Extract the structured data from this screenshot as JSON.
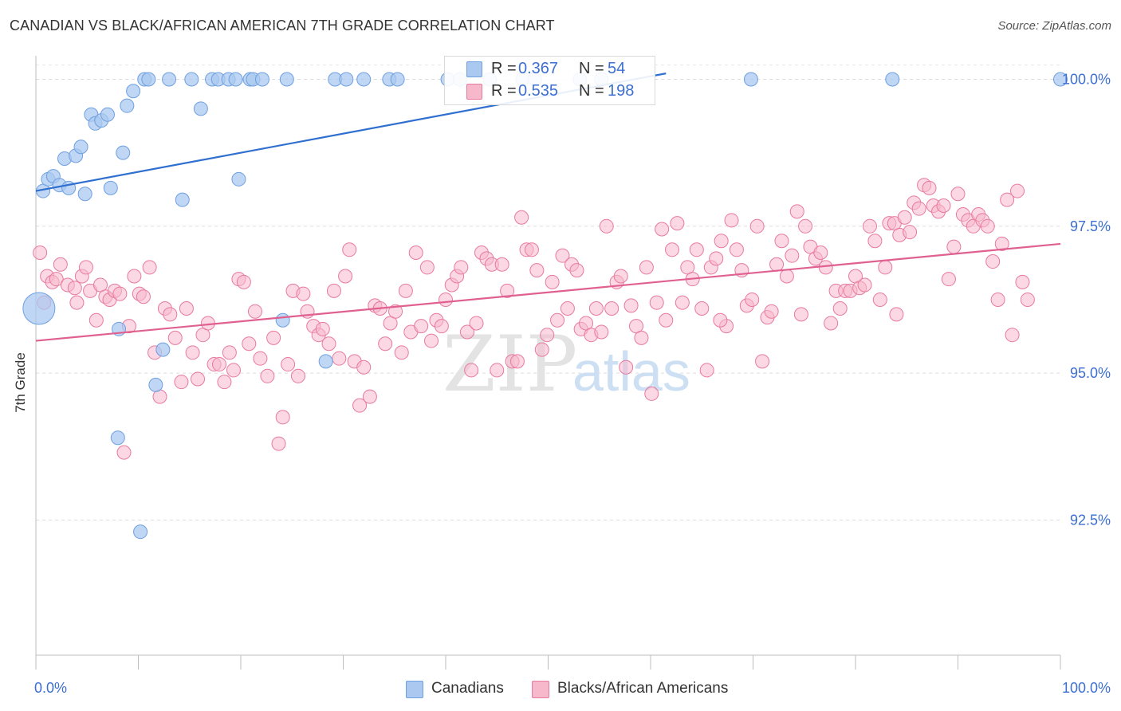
{
  "header": {
    "title": "CANADIAN VS BLACK/AFRICAN AMERICAN 7TH GRADE CORRELATION CHART",
    "source": "Source: ZipAtlas.com"
  },
  "watermark": {
    "zip": "ZIP",
    "atlas": "atlas"
  },
  "legend_top": {
    "rows": [
      {
        "r_label": "R =",
        "r_value": "0.367",
        "n_label": "N =",
        "n_value": "54",
        "color": "#aac8f0"
      },
      {
        "r_label": "R =",
        "r_value": "0.535",
        "n_label": "N =",
        "n_value": "198",
        "color": "#f7b8cc"
      }
    ]
  },
  "legend_bottom": {
    "items": [
      {
        "label": "Canadians",
        "color": "#aac8f0"
      },
      {
        "label": "Blacks/African Americans",
        "color": "#f7b8cc"
      }
    ]
  },
  "chart_data": {
    "type": "scatter",
    "title": "CANADIAN VS BLACK/AFRICAN AMERICAN 7TH GRADE CORRELATION CHART",
    "xlabel": "",
    "ylabel": "7th Grade",
    "xlim": [
      0,
      100
    ],
    "ylim": [
      90.2,
      100.4
    ],
    "x_tick_labels": [
      "0.0%",
      "100.0%"
    ],
    "y_ticks": [
      100.0,
      97.5,
      95.0,
      92.5
    ],
    "y_tick_labels": [
      "100.0%",
      "97.5%",
      "95.0%",
      "92.5%"
    ],
    "grid": true,
    "legend_position": "top-center",
    "series": [
      {
        "name": "Canadians",
        "color": "#6fa0e0",
        "fill": "#aac8f0",
        "r": 0.367,
        "n": 54,
        "trend": {
          "x": [
            0,
            61.5
          ],
          "y": [
            98.1,
            100.1
          ]
        },
        "points": [
          [
            0.3,
            96.1
          ],
          [
            0.7,
            98.1
          ],
          [
            1.2,
            98.3
          ],
          [
            1.7,
            98.35
          ],
          [
            2.3,
            98.2
          ],
          [
            2.8,
            98.65
          ],
          [
            3.2,
            98.15
          ],
          [
            3.9,
            98.7
          ],
          [
            4.4,
            98.85
          ],
          [
            4.8,
            98.05
          ],
          [
            5.4,
            99.4
          ],
          [
            5.8,
            99.25
          ],
          [
            6.4,
            99.3
          ],
          [
            7.0,
            99.4
          ],
          [
            7.3,
            98.15
          ],
          [
            8.1,
            95.75
          ],
          [
            8.5,
            98.75
          ],
          [
            8.9,
            99.55
          ],
          [
            9.5,
            99.8
          ],
          [
            10.2,
            92.3
          ],
          [
            10.6,
            100.0
          ],
          [
            11.0,
            100.0
          ],
          [
            11.7,
            94.8
          ],
          [
            12.4,
            95.4
          ],
          [
            13.0,
            100.0
          ],
          [
            14.3,
            97.95
          ],
          [
            15.2,
            100.0
          ],
          [
            16.1,
            99.5
          ],
          [
            17.2,
            100.0
          ],
          [
            17.8,
            100.0
          ],
          [
            18.8,
            100.0
          ],
          [
            19.5,
            100.0
          ],
          [
            19.8,
            98.3
          ],
          [
            20.9,
            100.0
          ],
          [
            21.2,
            100.0
          ],
          [
            22.1,
            100.0
          ],
          [
            24.1,
            95.9
          ],
          [
            24.5,
            100.0
          ],
          [
            28.3,
            95.2
          ],
          [
            29.2,
            100.0
          ],
          [
            30.3,
            100.0
          ],
          [
            32.0,
            100.0
          ],
          [
            34.5,
            100.0
          ],
          [
            35.3,
            100.0
          ],
          [
            40.2,
            100.0
          ],
          [
            41.4,
            100.0
          ],
          [
            44.3,
            100.0
          ],
          [
            47.5,
            100.0
          ],
          [
            48.7,
            100.0
          ],
          [
            53.1,
            100.0
          ],
          [
            55.2,
            100.0
          ],
          [
            69.8,
            100.0
          ],
          [
            83.6,
            100.0
          ],
          [
            100.0,
            100.0
          ],
          [
            8.0,
            93.9
          ]
        ]
      },
      {
        "name": "Blacks/African Americans",
        "color": "#e87aa0",
        "fill": "#f7b8cc",
        "r": 0.535,
        "n": 198,
        "trend": {
          "x": [
            0,
            100
          ],
          "y": [
            95.55,
            97.2
          ]
        },
        "points": [
          [
            0.4,
            97.05
          ],
          [
            0.8,
            96.2
          ],
          [
            1.1,
            96.65
          ],
          [
            1.6,
            96.55
          ],
          [
            2.0,
            96.6
          ],
          [
            2.4,
            96.85
          ],
          [
            3.1,
            96.5
          ],
          [
            3.8,
            96.45
          ],
          [
            4.0,
            96.2
          ],
          [
            4.5,
            96.65
          ],
          [
            4.9,
            96.8
          ],
          [
            5.3,
            96.4
          ],
          [
            5.9,
            95.9
          ],
          [
            6.3,
            96.5
          ],
          [
            6.8,
            96.3
          ],
          [
            7.2,
            96.25
          ],
          [
            7.7,
            96.4
          ],
          [
            8.2,
            96.35
          ],
          [
            8.6,
            93.65
          ],
          [
            9.1,
            95.8
          ],
          [
            9.6,
            96.65
          ],
          [
            10.1,
            96.35
          ],
          [
            10.5,
            96.3
          ],
          [
            11.1,
            96.8
          ],
          [
            11.6,
            95.35
          ],
          [
            12.1,
            94.6
          ],
          [
            12.6,
            96.1
          ],
          [
            13.1,
            96.0
          ],
          [
            13.6,
            95.6
          ],
          [
            14.2,
            94.85
          ],
          [
            14.7,
            96.1
          ],
          [
            15.3,
            95.35
          ],
          [
            15.8,
            94.9
          ],
          [
            16.3,
            95.65
          ],
          [
            16.8,
            95.85
          ],
          [
            17.4,
            95.15
          ],
          [
            17.9,
            95.15
          ],
          [
            18.4,
            94.85
          ],
          [
            18.9,
            95.35
          ],
          [
            19.3,
            95.05
          ],
          [
            19.8,
            96.6
          ],
          [
            20.3,
            96.55
          ],
          [
            20.8,
            95.5
          ],
          [
            21.4,
            96.05
          ],
          [
            21.9,
            95.25
          ],
          [
            22.6,
            94.95
          ],
          [
            23.2,
            95.6
          ],
          [
            23.7,
            93.8
          ],
          [
            24.1,
            94.25
          ],
          [
            24.6,
            95.15
          ],
          [
            25.1,
            96.4
          ],
          [
            25.6,
            94.95
          ],
          [
            26.1,
            96.35
          ],
          [
            26.5,
            96.05
          ],
          [
            27.1,
            95.8
          ],
          [
            27.6,
            95.65
          ],
          [
            28.0,
            95.75
          ],
          [
            28.6,
            95.5
          ],
          [
            29.1,
            96.4
          ],
          [
            29.6,
            95.25
          ],
          [
            30.2,
            96.65
          ],
          [
            30.6,
            97.1
          ],
          [
            31.1,
            95.2
          ],
          [
            31.6,
            94.45
          ],
          [
            32.0,
            95.1
          ],
          [
            32.6,
            94.6
          ],
          [
            33.1,
            96.15
          ],
          [
            33.6,
            96.1
          ],
          [
            34.1,
            95.5
          ],
          [
            34.6,
            95.85
          ],
          [
            35.1,
            96.05
          ],
          [
            35.7,
            95.35
          ],
          [
            36.1,
            96.4
          ],
          [
            36.6,
            95.7
          ],
          [
            37.1,
            97.05
          ],
          [
            37.6,
            95.8
          ],
          [
            38.2,
            96.8
          ],
          [
            38.6,
            95.55
          ],
          [
            39.1,
            95.9
          ],
          [
            39.6,
            95.8
          ],
          [
            40.0,
            96.25
          ],
          [
            40.6,
            96.5
          ],
          [
            41.1,
            96.65
          ],
          [
            41.5,
            96.8
          ],
          [
            42.1,
            95.7
          ],
          [
            42.5,
            95.05
          ],
          [
            43.0,
            95.85
          ],
          [
            43.5,
            97.05
          ],
          [
            44.0,
            96.95
          ],
          [
            44.5,
            96.85
          ],
          [
            45.0,
            95.05
          ],
          [
            45.5,
            96.85
          ],
          [
            46.0,
            96.4
          ],
          [
            46.5,
            95.2
          ],
          [
            47.0,
            95.2
          ],
          [
            47.4,
            97.65
          ],
          [
            47.9,
            97.1
          ],
          [
            48.4,
            97.1
          ],
          [
            48.9,
            96.75
          ],
          [
            49.4,
            95.4
          ],
          [
            49.9,
            95.65
          ],
          [
            50.4,
            96.55
          ],
          [
            50.9,
            95.9
          ],
          [
            51.4,
            97.0
          ],
          [
            51.9,
            96.1
          ],
          [
            52.3,
            96.85
          ],
          [
            52.8,
            96.75
          ],
          [
            53.2,
            95.75
          ],
          [
            53.7,
            95.85
          ],
          [
            54.2,
            95.65
          ],
          [
            54.7,
            96.1
          ],
          [
            55.2,
            95.7
          ],
          [
            55.7,
            97.5
          ],
          [
            56.2,
            96.1
          ],
          [
            56.7,
            96.55
          ],
          [
            57.1,
            96.65
          ],
          [
            57.6,
            95.1
          ],
          [
            58.1,
            96.15
          ],
          [
            58.6,
            95.8
          ],
          [
            59.1,
            95.6
          ],
          [
            59.6,
            96.8
          ],
          [
            60.1,
            94.65
          ],
          [
            60.6,
            96.2
          ],
          [
            61.1,
            97.45
          ],
          [
            61.5,
            95.9
          ],
          [
            62.1,
            97.1
          ],
          [
            62.6,
            97.55
          ],
          [
            63.1,
            96.2
          ],
          [
            63.6,
            96.8
          ],
          [
            64.1,
            96.6
          ],
          [
            64.5,
            97.1
          ],
          [
            65.0,
            96.1
          ],
          [
            65.5,
            95.05
          ],
          [
            65.9,
            96.8
          ],
          [
            66.4,
            96.95
          ],
          [
            66.9,
            97.25
          ],
          [
            67.4,
            95.8
          ],
          [
            67.9,
            97.6
          ],
          [
            68.4,
            97.1
          ],
          [
            68.9,
            96.75
          ],
          [
            69.4,
            96.15
          ],
          [
            69.9,
            96.25
          ],
          [
            70.4,
            97.5
          ],
          [
            70.9,
            95.2
          ],
          [
            71.4,
            95.95
          ],
          [
            71.8,
            96.05
          ],
          [
            72.3,
            96.85
          ],
          [
            72.8,
            97.25
          ],
          [
            73.3,
            96.65
          ],
          [
            73.8,
            97.0
          ],
          [
            74.3,
            97.75
          ],
          [
            74.7,
            96.0
          ],
          [
            75.1,
            97.5
          ],
          [
            75.6,
            97.15
          ],
          [
            76.1,
            96.95
          ],
          [
            76.6,
            97.05
          ],
          [
            77.1,
            96.8
          ],
          [
            77.6,
            95.85
          ],
          [
            78.1,
            96.4
          ],
          [
            78.5,
            96.1
          ],
          [
            79.0,
            96.4
          ],
          [
            79.5,
            96.4
          ],
          [
            80.0,
            96.65
          ],
          [
            80.4,
            96.45
          ],
          [
            80.9,
            96.5
          ],
          [
            81.4,
            97.5
          ],
          [
            81.9,
            97.25
          ],
          [
            82.4,
            96.25
          ],
          [
            82.9,
            96.8
          ],
          [
            83.3,
            97.55
          ],
          [
            83.8,
            97.55
          ],
          [
            84.3,
            97.35
          ],
          [
            84.8,
            97.65
          ],
          [
            85.3,
            97.4
          ],
          [
            85.7,
            97.9
          ],
          [
            86.2,
            97.8
          ],
          [
            86.7,
            98.2
          ],
          [
            87.2,
            98.15
          ],
          [
            87.6,
            97.85
          ],
          [
            88.1,
            97.75
          ],
          [
            88.6,
            97.85
          ],
          [
            89.1,
            96.6
          ],
          [
            89.6,
            97.15
          ],
          [
            90.0,
            98.05
          ],
          [
            90.5,
            97.7
          ],
          [
            91.0,
            97.6
          ],
          [
            91.5,
            97.5
          ],
          [
            92.0,
            97.7
          ],
          [
            92.4,
            97.6
          ],
          [
            92.9,
            97.5
          ],
          [
            93.4,
            96.9
          ],
          [
            93.9,
            96.25
          ],
          [
            94.3,
            97.2
          ],
          [
            94.8,
            97.95
          ],
          [
            95.3,
            95.65
          ],
          [
            95.8,
            98.1
          ],
          [
            96.3,
            96.55
          ],
          [
            96.8,
            96.25
          ],
          [
            84.0,
            96.0
          ],
          [
            66.8,
            95.9
          ]
        ]
      }
    ]
  }
}
